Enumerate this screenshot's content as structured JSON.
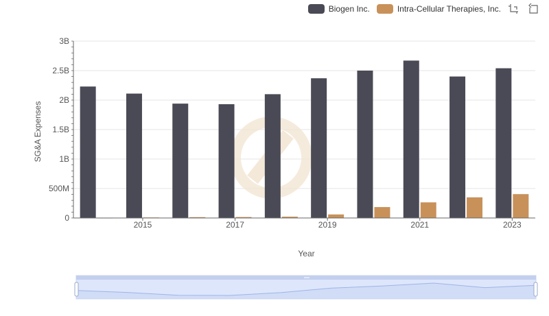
{
  "chart_data": {
    "type": "bar",
    "title": "",
    "xlabel": "Year",
    "ylabel": "SG&A Expenses",
    "x_ticks": [
      "2015",
      "2017",
      "2019",
      "2021",
      "2023"
    ],
    "y_ticks": [
      "0",
      "500M",
      "1B",
      "1.5B",
      "2B",
      "2.5B",
      "3B"
    ],
    "ylim": [
      0,
      3000000000
    ],
    "categories": [
      "2014",
      "2015",
      "2016",
      "2017",
      "2018",
      "2019",
      "2020",
      "2021",
      "2022",
      "2023"
    ],
    "series": [
      {
        "name": "Biogen Inc.",
        "color": "#4a4a56",
        "values": [
          2230000000,
          2110000000,
          1940000000,
          1930000000,
          2100000000,
          2370000000,
          2500000000,
          2670000000,
          2400000000,
          2540000000
        ]
      },
      {
        "name": "Intra-Cellular Therapies, Inc.",
        "color": "#c8915a",
        "values": [
          5000000,
          9000000,
          14000000,
          16000000,
          22000000,
          60000000,
          185000000,
          265000000,
          350000000,
          405000000
        ]
      }
    ],
    "grid": true,
    "legend_position": "top-right",
    "data_zoom": true
  },
  "toolbar": {
    "zoom_icon": "zoom-crosshair-icon",
    "restore_icon": "restore-icon"
  }
}
